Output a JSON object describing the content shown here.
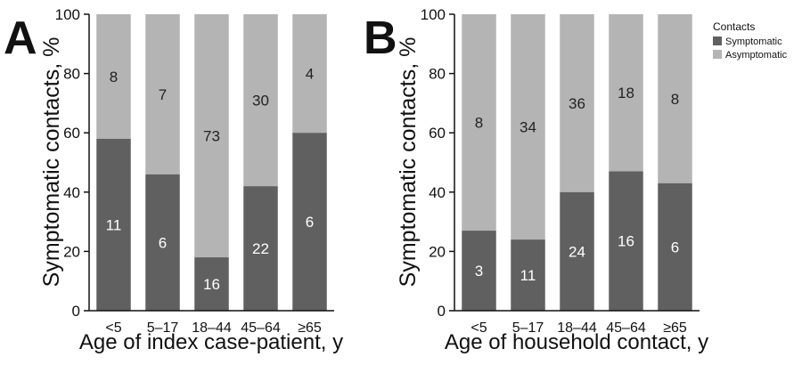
{
  "legend": {
    "title": "Contacts",
    "entries": [
      {
        "label": "Symptomatic",
        "color": "#606060"
      },
      {
        "label": "Asymptomatic",
        "color": "#b4b4b4"
      }
    ]
  },
  "chart_data": [
    {
      "panel": "A",
      "type": "bar",
      "stacked": true,
      "xlabel": "Age of index case-patient, y",
      "ylabel": "Symptomatic contacts, %",
      "ylim": [
        0,
        100
      ],
      "yticks": [
        "0",
        "20",
        "40",
        "60",
        "80",
        "100"
      ],
      "categories": [
        "<5",
        "5–17",
        "18–44",
        "45–64",
        "≥65"
      ],
      "symptomatic_pct": [
        58,
        46,
        18,
        42,
        60
      ],
      "series": [
        {
          "name": "Symptomatic",
          "counts": [
            "11",
            "6",
            "16",
            "22",
            "6"
          ]
        },
        {
          "name": "Asymptomatic",
          "counts": [
            "8",
            "7",
            "73",
            "30",
            "4"
          ]
        }
      ]
    },
    {
      "panel": "B",
      "type": "bar",
      "stacked": true,
      "xlabel": "Age of household contact, y",
      "ylabel": "Symptomatic contacts, %",
      "ylim": [
        0,
        100
      ],
      "yticks": [
        "0",
        "20",
        "40",
        "60",
        "80",
        "100"
      ],
      "categories": [
        "<5",
        "5–17",
        "18–44",
        "45–64",
        "≥65"
      ],
      "symptomatic_pct": [
        27,
        24,
        40,
        47,
        43
      ],
      "series": [
        {
          "name": "Symptomatic",
          "counts": [
            "3",
            "11",
            "24",
            "16",
            "6"
          ]
        },
        {
          "name": "Asymptomatic",
          "counts": [
            "8",
            "34",
            "36",
            "18",
            "8"
          ]
        }
      ]
    }
  ]
}
